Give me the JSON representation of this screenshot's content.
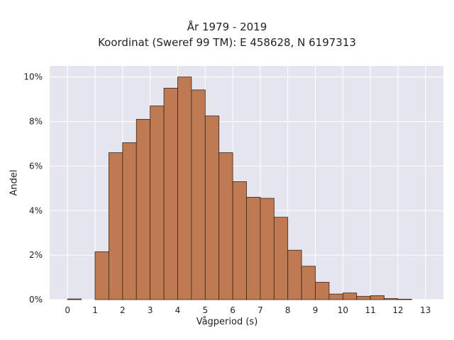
{
  "chart_data": {
    "type": "bar",
    "title": "År 1979 - 2019",
    "subtitle": "Koordinat (Sweref 99 TM): E 458628, N 6197313",
    "xlabel": "Vågperiod (s)",
    "ylabel": "Andel",
    "bin_width": 0.5,
    "bin_starts": [
      0,
      0.5,
      1,
      1.5,
      2,
      2.5,
      3,
      3.5,
      4,
      4.5,
      5,
      5.5,
      6,
      6.5,
      7,
      7.5,
      8,
      8.5,
      9,
      9.5,
      10,
      10.5,
      11,
      11.5,
      12,
      12.5
    ],
    "values": [
      0.03,
      0,
      2.15,
      6.6,
      7.05,
      8.1,
      8.7,
      9.5,
      10.0,
      9.42,
      8.25,
      6.6,
      5.3,
      4.6,
      4.55,
      3.7,
      2.22,
      1.5,
      0.78,
      0.25,
      0.3,
      0.15,
      0.18,
      0.05,
      0.02,
      0
    ],
    "x_ticks": [
      "0",
      "1",
      "2",
      "3",
      "4",
      "5",
      "6",
      "7",
      "8",
      "9",
      "10",
      "11",
      "12",
      "13"
    ],
    "y_ticks": [
      "0%",
      "2%",
      "4%",
      "6%",
      "8%",
      "10%"
    ],
    "x_range": [
      -0.65,
      13.65
    ],
    "y_range": [
      0,
      10.5
    ],
    "grid": true,
    "bar_color": "#c07a52",
    "bar_edge_color": "#3a2418",
    "plot_background": "#e5e5ef"
  }
}
